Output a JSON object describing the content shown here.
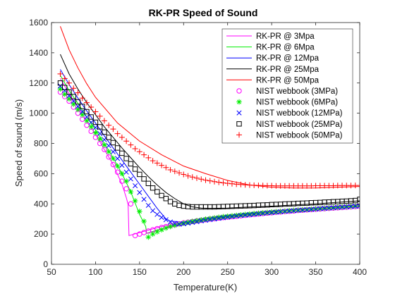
{
  "chart_data": {
    "type": "line",
    "title": "RK-PR Speed of Sound",
    "xlabel": "Temperature(K)",
    "ylabel": "Speed of sound (m/s)",
    "xlim": [
      50,
      400
    ],
    "ylim": [
      0,
      1600
    ],
    "xticks": [
      50,
      100,
      150,
      200,
      250,
      300,
      350,
      400
    ],
    "yticks": [
      0,
      200,
      400,
      600,
      800,
      1000,
      1200,
      1400,
      1600
    ],
    "grid": false,
    "legend_position": "top-right",
    "lines": [
      {
        "name": "RK-PR @ 3Mpa",
        "color": "#ff00ff",
        "x": [
          60,
          70,
          80,
          90,
          100,
          110,
          120,
          130,
          135,
          137,
          138,
          150,
          175,
          200,
          250,
          300,
          350,
          400
        ],
        "y": [
          1230,
          1130,
          1040,
          950,
          860,
          760,
          660,
          530,
          440,
          395,
          190,
          210,
          250,
          275,
          310,
          335,
          358,
          380
        ]
      },
      {
        "name": "RK-PR @ 6Mpa",
        "color": "#00ee00",
        "x": [
          60,
          70,
          80,
          90,
          100,
          110,
          120,
          130,
          140,
          150,
          157,
          158,
          175,
          200,
          250,
          300,
          350,
          400
        ],
        "y": [
          1250,
          1150,
          1065,
          975,
          890,
          800,
          705,
          600,
          480,
          330,
          250,
          205,
          235,
          270,
          310,
          335,
          360,
          385
        ]
      },
      {
        "name": "RK-PR @ 12Mpa",
        "color": "#0000ff",
        "x": [
          60,
          70,
          80,
          90,
          100,
          110,
          120,
          130,
          140,
          150,
          160,
          170,
          180,
          185,
          200,
          250,
          300,
          350,
          400
        ],
        "y": [
          1290,
          1190,
          1100,
          1015,
          935,
          850,
          770,
          690,
          610,
          530,
          450,
          370,
          300,
          285,
          280,
          315,
          345,
          370,
          395
        ]
      },
      {
        "name": "RK-PR @ 25Mpa",
        "color": "#000000",
        "x": [
          60,
          70,
          80,
          90,
          100,
          110,
          120,
          130,
          140,
          150,
          160,
          170,
          180,
          190,
          200,
          210,
          220,
          230,
          250,
          270,
          300,
          350,
          400
        ],
        "y": [
          1390,
          1260,
          1160,
          1070,
          990,
          910,
          840,
          770,
          705,
          640,
          580,
          525,
          475,
          435,
          400,
          380,
          372,
          370,
          372,
          378,
          385,
          400,
          420
        ]
      },
      {
        "name": "RK-PR @ 50Mpa",
        "color": "#ff0000",
        "x": [
          60,
          70,
          80,
          90,
          100,
          125,
          150,
          175,
          200,
          225,
          250,
          275,
          300,
          325,
          350,
          375,
          400
        ],
        "y": [
          1575,
          1420,
          1300,
          1195,
          1105,
          935,
          815,
          725,
          650,
          600,
          555,
          525,
          510,
          505,
          505,
          510,
          515
        ]
      }
    ],
    "scatter": [
      {
        "name": "NIST webbook (3MPa)",
        "color": "#ff00ff",
        "marker": "circle",
        "x": [
          60,
          65,
          70,
          75,
          80,
          85,
          90,
          95,
          100,
          105,
          110,
          115,
          120,
          125,
          130,
          135,
          140,
          145,
          150,
          155,
          160,
          165,
          170,
          175,
          180,
          185,
          190,
          195,
          200,
          205,
          210,
          215,
          220,
          225,
          230,
          235,
          240,
          245,
          250,
          255,
          260,
          265,
          270,
          275,
          280,
          285,
          290,
          295,
          300,
          305,
          310,
          315,
          320,
          325,
          330,
          335,
          340,
          345,
          350,
          355,
          360,
          365,
          370,
          375,
          380,
          385,
          390,
          395,
          400
        ],
        "y": [
          1140,
          1110,
          1080,
          1040,
          1000,
          960,
          920,
          880,
          840,
          800,
          760,
          710,
          660,
          610,
          550,
          500,
          400,
          190,
          200,
          210,
          220,
          228,
          236,
          244,
          250,
          256,
          262,
          268,
          274,
          279,
          283,
          287,
          291,
          295,
          299,
          302,
          306,
          309,
          312,
          315,
          318,
          321,
          324,
          327,
          330,
          333,
          336,
          339,
          341,
          344,
          346,
          349,
          351,
          353,
          356,
          358,
          360,
          362,
          364,
          366,
          368,
          370,
          372,
          374,
          376,
          378,
          380,
          382,
          384
        ]
      },
      {
        "name": "NIST webbook (6MPa)",
        "color": "#00ee00",
        "marker": "asterisk",
        "x": [
          60,
          65,
          70,
          75,
          80,
          85,
          90,
          95,
          100,
          105,
          110,
          115,
          120,
          125,
          130,
          135,
          140,
          145,
          150,
          155,
          160,
          165,
          170,
          175,
          180,
          185,
          190,
          195,
          200,
          205,
          210,
          215,
          220,
          225,
          230,
          235,
          240,
          245,
          250,
          255,
          260,
          265,
          270,
          275,
          280,
          285,
          290,
          295,
          300,
          305,
          310,
          315,
          320,
          325,
          330,
          335,
          340,
          345,
          350,
          355,
          360,
          365,
          370,
          375,
          380,
          385,
          390,
          395,
          400
        ],
        "y": [
          1160,
          1125,
          1095,
          1060,
          1025,
          990,
          950,
          910,
          870,
          830,
          790,
          745,
          700,
          650,
          600,
          550,
          480,
          420,
          350,
          285,
          180,
          200,
          215,
          228,
          240,
          250,
          258,
          266,
          272,
          278,
          284,
          289,
          294,
          299,
          303,
          307,
          311,
          315,
          318,
          321,
          324,
          327,
          330,
          333,
          336,
          338,
          341,
          343,
          346,
          348,
          350,
          352,
          355,
          357,
          359,
          361,
          363,
          365,
          367,
          369,
          371,
          373,
          375,
          377,
          379,
          381,
          383,
          385,
          387
        ]
      },
      {
        "name": "NIST webbook (12MPa)",
        "color": "#0000ff",
        "marker": "x",
        "x": [
          60,
          65,
          70,
          75,
          80,
          85,
          90,
          95,
          100,
          105,
          110,
          115,
          120,
          125,
          130,
          135,
          140,
          145,
          150,
          155,
          160,
          165,
          170,
          175,
          180,
          185,
          190,
          195,
          200,
          205,
          210,
          215,
          220,
          225,
          230,
          235,
          240,
          245,
          250,
          255,
          260,
          265,
          270,
          275,
          280,
          285,
          290,
          295,
          300,
          305,
          310,
          315,
          320,
          325,
          330,
          335,
          340,
          345,
          350,
          355,
          360,
          365,
          370,
          375,
          380,
          385,
          390,
          395,
          400
        ],
        "y": [
          1180,
          1150,
          1115,
          1080,
          1045,
          1010,
          975,
          940,
          905,
          865,
          825,
          785,
          745,
          700,
          655,
          610,
          565,
          520,
          475,
          430,
          390,
          355,
          330,
          310,
          295,
          280,
          270,
          265,
          268,
          272,
          277,
          282,
          287,
          291,
          296,
          300,
          304,
          308,
          312,
          315,
          319,
          322,
          325,
          328,
          331,
          334,
          337,
          340,
          342,
          345,
          347,
          350,
          352,
          354,
          357,
          359,
          361,
          363,
          365,
          368,
          370,
          372,
          374,
          376,
          378,
          380,
          382,
          384,
          386
        ]
      },
      {
        "name": "NIST webbook (25MPa)",
        "color": "#000000",
        "marker": "square",
        "x": [
          60,
          65,
          70,
          75,
          80,
          85,
          90,
          95,
          100,
          105,
          110,
          115,
          120,
          125,
          130,
          135,
          140,
          145,
          150,
          155,
          160,
          165,
          170,
          175,
          180,
          185,
          190,
          195,
          200,
          205,
          210,
          215,
          220,
          225,
          230,
          235,
          240,
          245,
          250,
          255,
          260,
          265,
          270,
          275,
          280,
          285,
          290,
          295,
          300,
          305,
          310,
          315,
          320,
          325,
          330,
          335,
          340,
          345,
          350,
          355,
          360,
          365,
          370,
          375,
          380,
          385,
          390,
          395,
          400
        ],
        "y": [
          1200,
          1170,
          1140,
          1110,
          1075,
          1045,
          1010,
          975,
          940,
          910,
          875,
          840,
          805,
          770,
          735,
          700,
          665,
          630,
          595,
          565,
          535,
          505,
          480,
          455,
          435,
          415,
          400,
          390,
          385,
          382,
          380,
          380,
          380,
          380,
          380,
          380,
          381,
          382,
          383,
          384,
          385,
          386,
          387,
          388,
          389,
          391,
          392,
          393,
          395,
          396,
          397,
          399,
          400,
          401,
          403,
          404,
          405,
          407,
          408,
          409,
          411,
          412,
          414,
          415,
          417,
          418,
          420,
          422,
          430
        ]
      },
      {
        "name": "NIST webbook (50MPa)",
        "color": "#ff0000",
        "marker": "plus",
        "x": [
          60,
          65,
          70,
          75,
          80,
          85,
          90,
          95,
          100,
          105,
          110,
          115,
          120,
          125,
          130,
          135,
          140,
          145,
          150,
          155,
          160,
          165,
          170,
          175,
          180,
          185,
          190,
          195,
          200,
          205,
          210,
          215,
          220,
          225,
          230,
          235,
          240,
          245,
          250,
          255,
          260,
          265,
          270,
          275,
          280,
          285,
          290,
          295,
          300,
          305,
          310,
          315,
          320,
          325,
          330,
          335,
          340,
          345,
          350,
          355,
          360,
          365,
          370,
          375,
          380,
          385,
          390,
          395,
          400
        ],
        "y": [
          1260,
          1230,
          1200,
          1165,
          1135,
          1100,
          1070,
          1040,
          1010,
          980,
          950,
          920,
          895,
          865,
          840,
          815,
          790,
          765,
          745,
          725,
          705,
          685,
          670,
          655,
          640,
          625,
          615,
          605,
          595,
          585,
          577,
          570,
          563,
          557,
          552,
          547,
          543,
          539,
          536,
          533,
          530,
          528,
          526,
          524,
          523,
          522,
          521,
          520,
          520,
          519,
          519,
          519,
          519,
          519,
          519,
          519,
          519,
          519,
          520,
          520,
          520,
          520,
          520,
          521,
          521,
          521,
          521,
          522,
          522
        ]
      }
    ]
  }
}
